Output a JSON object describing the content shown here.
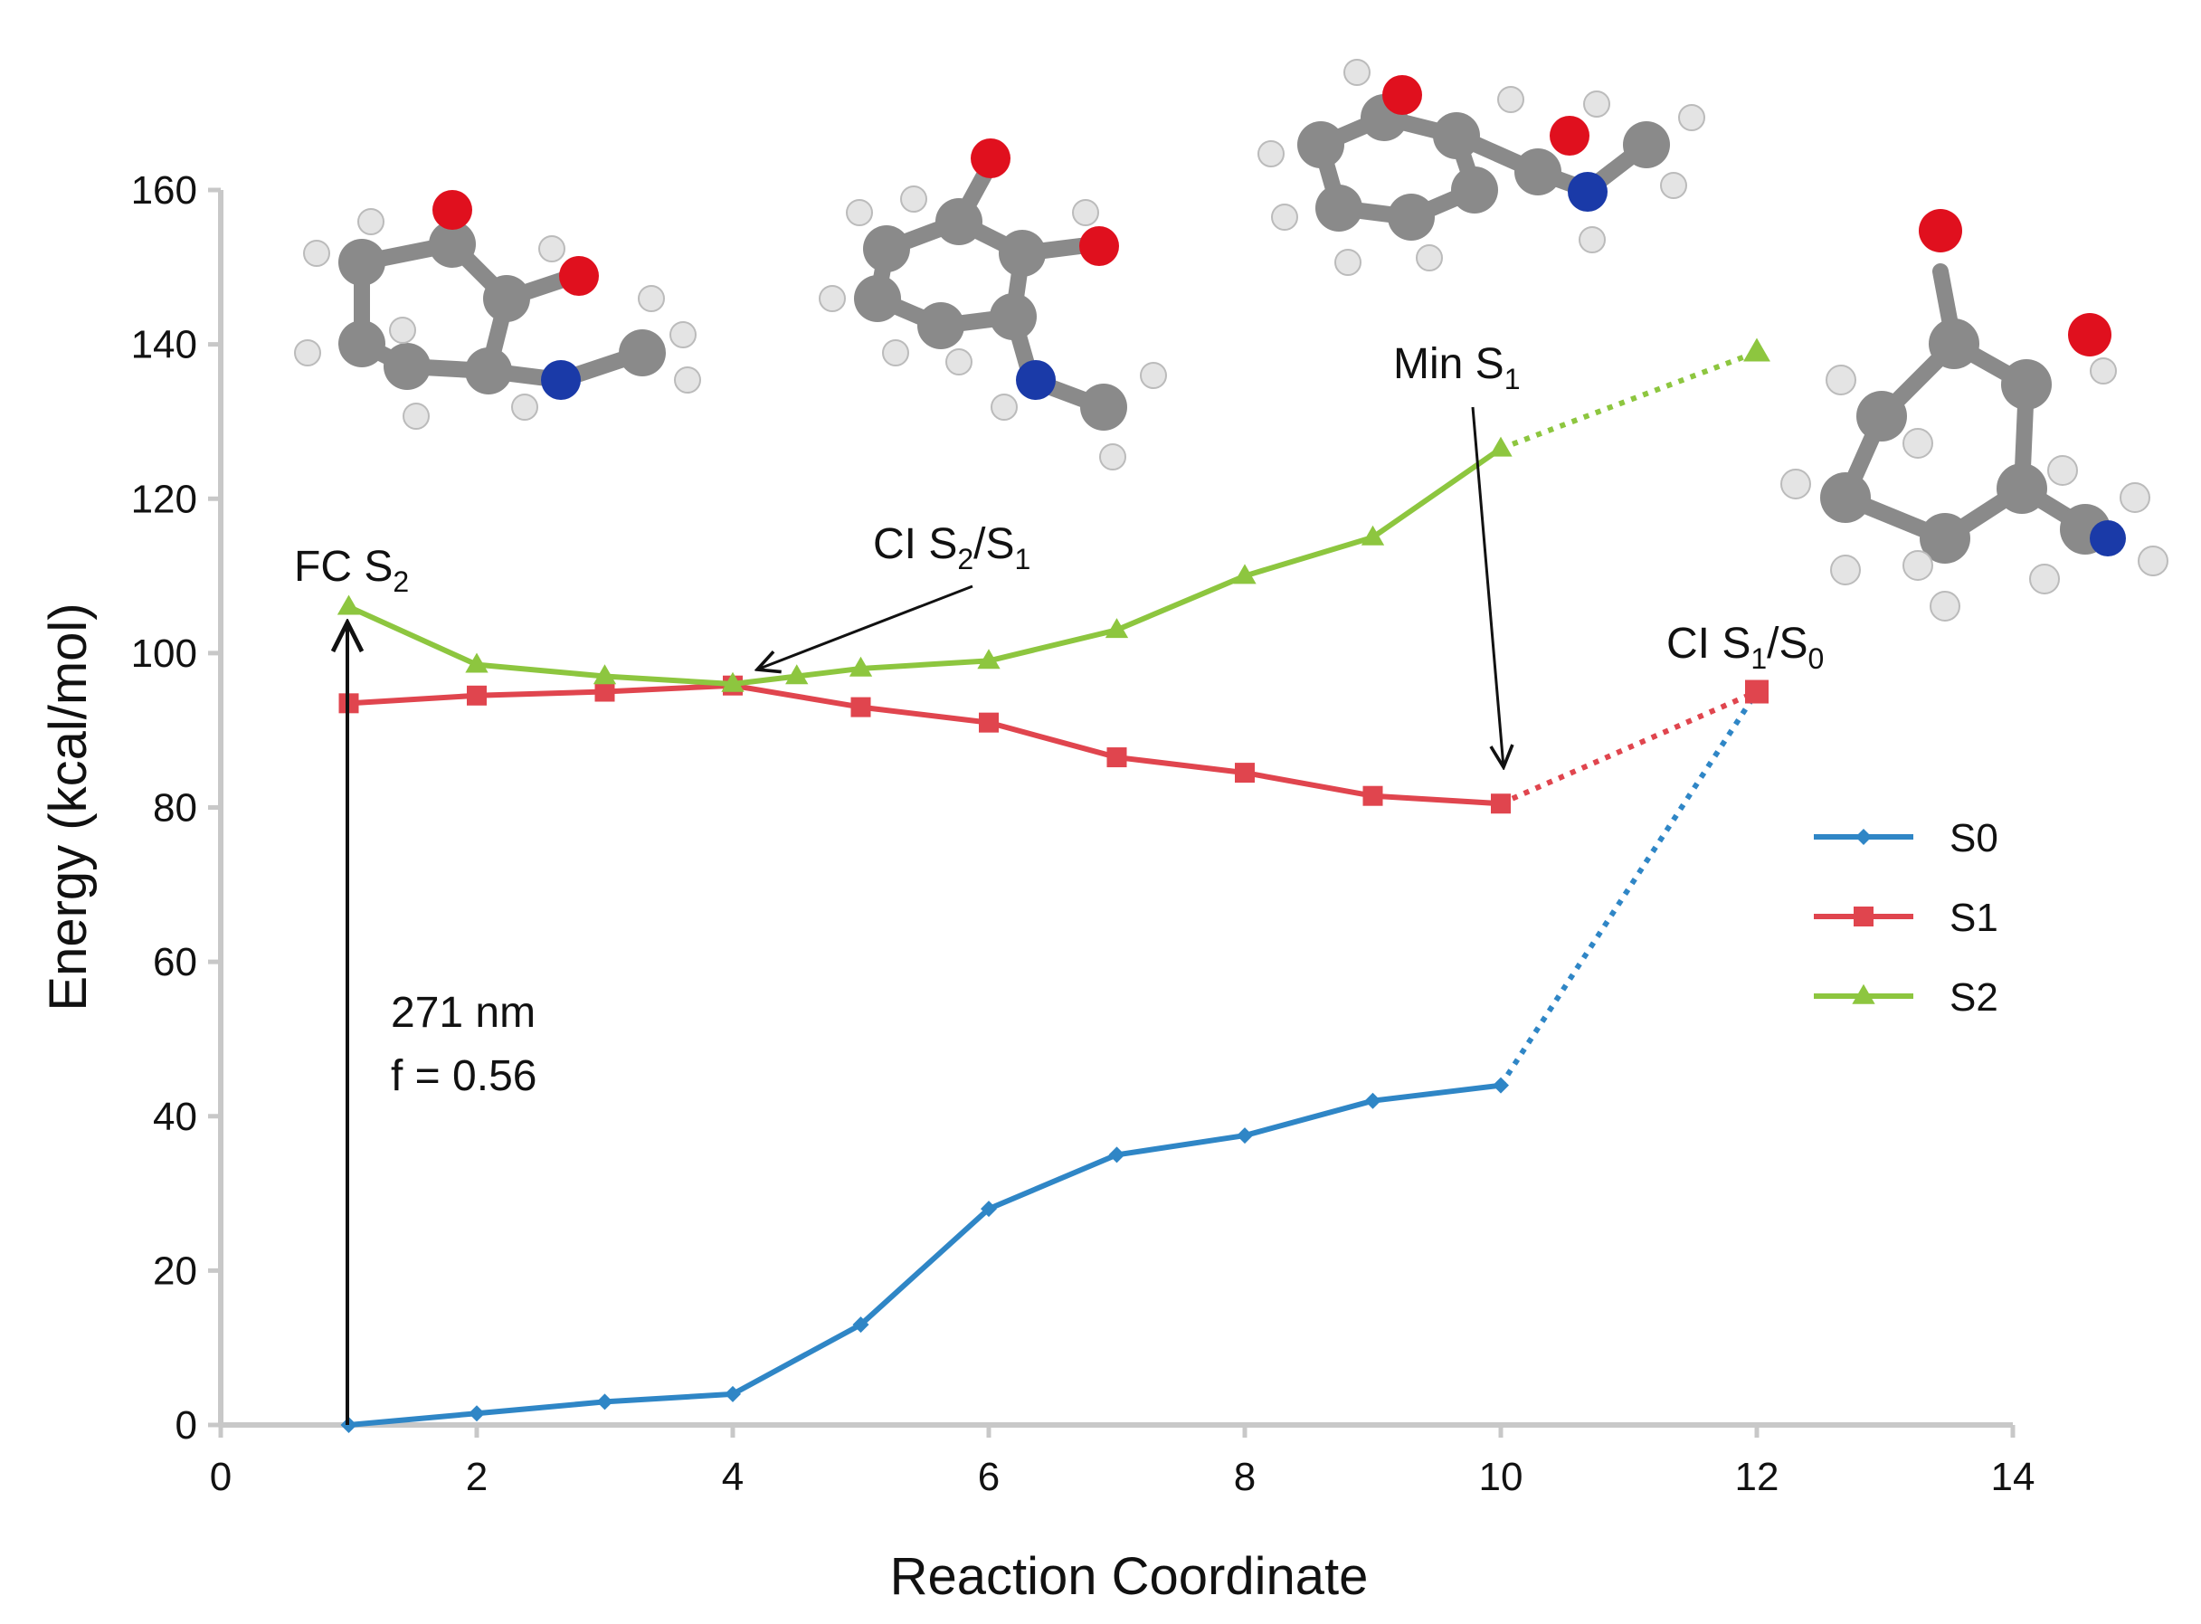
{
  "chart_data": {
    "type": "line",
    "xlabel": "Reaction Coordinate",
    "ylabel": "Energy (kcal/mol)",
    "xlim": [
      0,
      14
    ],
    "ylim": [
      0,
      160
    ],
    "xticks": [
      "0",
      "2",
      "4",
      "6",
      "8",
      "10",
      "12",
      "14"
    ],
    "yticks": [
      "0",
      "20",
      "40",
      "60",
      "80",
      "100",
      "120",
      "140",
      "160"
    ],
    "grid": false,
    "legend_position": "right",
    "series": [
      {
        "name": "S0",
        "color": "#2f86c6",
        "marker": "diamond",
        "x": [
          1,
          2,
          3,
          4,
          5,
          6,
          7,
          8,
          9,
          10
        ],
        "values": [
          0,
          1.5,
          3,
          4,
          13,
          28,
          35,
          37.5,
          42,
          44
        ],
        "dotted_extension": {
          "x": [
            10,
            12
          ],
          "values": [
            44,
            95
          ]
        }
      },
      {
        "name": "S1",
        "color": "#e0454e",
        "marker": "square",
        "x": [
          1,
          2,
          3,
          4,
          5,
          6,
          7,
          8,
          9,
          10
        ],
        "values": [
          93.5,
          94.5,
          95,
          95.8,
          93,
          91,
          86.5,
          84.5,
          81.5,
          80.5
        ],
        "dotted_extension": {
          "x": [
            10,
            12
          ],
          "values": [
            80.5,
            95
          ]
        }
      },
      {
        "name": "S2",
        "color": "#8dc63f",
        "marker": "triangle",
        "x": [
          1,
          2,
          3,
          4,
          4.5,
          5,
          6,
          7,
          8,
          9,
          10
        ],
        "values": [
          106,
          98.5,
          97,
          96,
          97,
          98,
          99,
          103,
          110,
          115,
          126.5
        ],
        "dotted_extension": {
          "x": [
            10,
            12
          ],
          "values": [
            126.5,
            139
          ]
        }
      }
    ],
    "annotations": [
      {
        "id": "fc",
        "base": "FC S",
        "sub": "2",
        "sub2": ""
      },
      {
        "id": "ci21",
        "base": "CI S",
        "sub": "2",
        "mid": "/S",
        "sub2": "1"
      },
      {
        "id": "mins1",
        "base": "Min S",
        "sub": "1",
        "sub2": ""
      },
      {
        "id": "ci10",
        "base": "CI S",
        "sub": "1",
        "mid": "/S",
        "sub2": "0"
      }
    ],
    "excitation_label": [
      "271 nm",
      "f = 0.56"
    ]
  }
}
